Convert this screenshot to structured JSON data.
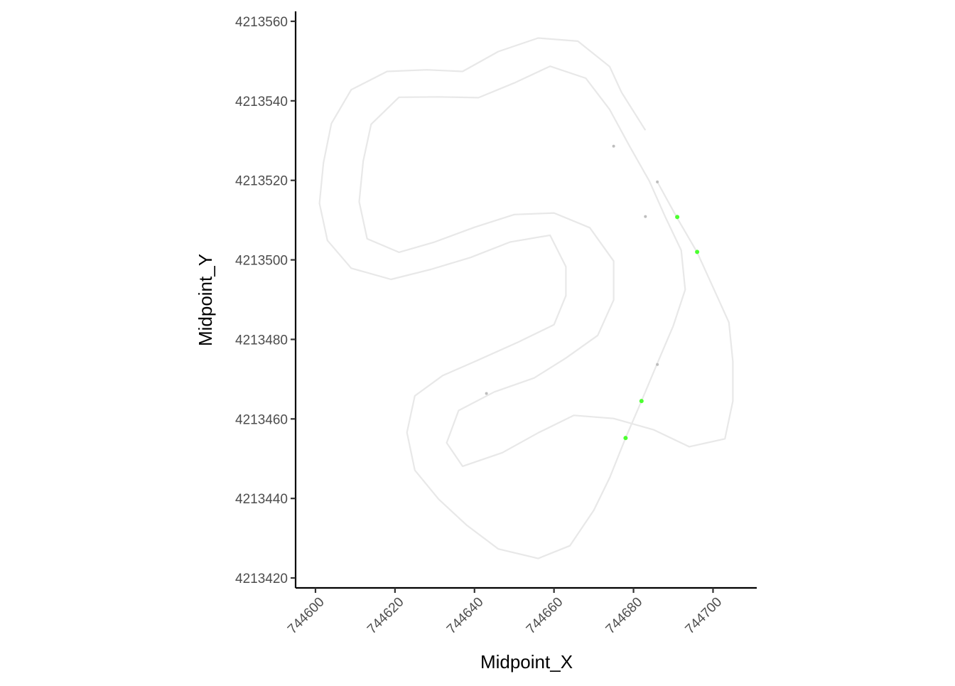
{
  "chart_data": {
    "type": "scatter",
    "title": "",
    "xlabel": "Midpoint_X",
    "ylabel": "Midpoint_Y",
    "xlim": [
      744595,
      744711
    ],
    "ylim": [
      4213417.5,
      4213562.5
    ],
    "x_ticks": [
      744600,
      744620,
      744640,
      744660,
      744680,
      744700
    ],
    "x_tick_labels": [
      "744600",
      "744620",
      "744640",
      "744660",
      "744680",
      "744700"
    ],
    "y_ticks": [
      4213420,
      4213440,
      4213460,
      4213480,
      4213500,
      4213520,
      4213540,
      4213560
    ],
    "y_tick_labels": [
      "4213420",
      "4213440",
      "4213460",
      "4213480",
      "4213500",
      "4213520",
      "4213540",
      "4213560"
    ],
    "grid": false,
    "legend": "none",
    "colors": {
      "bank_line": "#e8e8e8",
      "gray_point": "#bdbdbd",
      "green_point": "#4cff30",
      "axis": "#000000"
    },
    "lines": [
      {
        "role": "outer-bank",
        "points": [
          [
            744683,
            4213532.6
          ],
          [
            744677,
            4213542.1
          ],
          [
            744674,
            4213548.6
          ],
          [
            744666,
            4213555.0
          ],
          [
            744656,
            4213555.8
          ],
          [
            744646,
            4213552.4
          ],
          [
            744637,
            4213547.4
          ],
          [
            744628,
            4213547.8
          ],
          [
            744618,
            4213547.4
          ],
          [
            744609,
            4213542.8
          ],
          [
            744604,
            4213534.3
          ],
          [
            744602,
            4213524.4
          ],
          [
            744601,
            4213514.2
          ],
          [
            744603,
            4213504.9
          ],
          [
            744609,
            4213497.9
          ],
          [
            744619,
            4213495.1
          ],
          [
            744629,
            4213497.6
          ],
          [
            744639,
            4213500.6
          ],
          [
            744649,
            4213504.5
          ],
          [
            744659,
            4213506.2
          ],
          [
            744663,
            4213498.3
          ],
          [
            744663,
            4213491.0
          ],
          [
            744660,
            4213483.7
          ],
          [
            744651,
            4213479.3
          ],
          [
            744640,
            4213474.4
          ],
          [
            744632,
            4213470.9
          ],
          [
            744625,
            4213465.8
          ],
          [
            744623,
            4213456.6
          ],
          [
            744625,
            4213447.1
          ],
          [
            744631,
            4213439.8
          ],
          [
            744638,
            4213433.3
          ],
          [
            744646,
            4213427.3
          ],
          [
            744656,
            4213424.9
          ],
          [
            744664,
            4213428.1
          ],
          [
            744670,
            4213437.0
          ],
          [
            744674,
            4213445.2
          ],
          [
            744678,
            4213455.2
          ],
          [
            744682,
            4213464.5
          ],
          [
            744686,
            4213474.0
          ],
          [
            744690,
            4213483.4
          ],
          [
            744693,
            4213492.5
          ],
          [
            744692,
            4213502.4
          ],
          [
            744688,
            4213510.8
          ],
          [
            744684,
            4213519.8
          ],
          [
            744679,
            4213528.6
          ],
          [
            744674,
            4213537.8
          ],
          [
            744668,
            4213545.7
          ],
          [
            744659,
            4213548.7
          ],
          [
            744650,
            4213544.5
          ],
          [
            744641,
            4213540.8
          ],
          [
            744631,
            4213541.0
          ],
          [
            744621,
            4213540.9
          ],
          [
            744614,
            4213534.1
          ],
          [
            744612,
            4213524.8
          ],
          [
            744611,
            4213514.6
          ],
          [
            744613,
            4213505.3
          ],
          [
            744621,
            4213501.9
          ],
          [
            744630,
            4213504.5
          ],
          [
            744640,
            4213508.2
          ],
          [
            744650,
            4213511.4
          ],
          [
            744660,
            4213511.8
          ],
          [
            744669,
            4213508.1
          ],
          [
            744675,
            4213499.7
          ],
          [
            744675,
            4213489.9
          ],
          [
            744671,
            4213481.0
          ],
          [
            744663,
            4213475.3
          ],
          [
            744655,
            4213470.3
          ],
          [
            744645,
            4213466.8
          ],
          [
            744636,
            4213462.1
          ],
          [
            744633,
            4213454.0
          ],
          [
            744637,
            4213448.1
          ],
          [
            744647,
            4213451.5
          ],
          [
            744656,
            4213456.5
          ],
          [
            744665,
            4213460.9
          ],
          [
            744675,
            4213460.1
          ],
          [
            744685,
            4213457.3
          ],
          [
            744694,
            4213453.0
          ],
          [
            744703,
            4213455.0
          ],
          [
            744705,
            4213464.5
          ],
          [
            744705,
            4213474.4
          ],
          [
            744704,
            4213484.3
          ],
          [
            744700,
            4213493.1
          ],
          [
            744696,
            4213501.9
          ],
          [
            744691,
            4213510.5
          ],
          [
            744686,
            4213519.6
          ]
        ]
      }
    ],
    "series": [
      {
        "color": "#bdbdbd",
        "points": [
          [
            744675,
            4213528.6
          ],
          [
            744686,
            4213519.6
          ],
          [
            744683,
            4213510.9
          ],
          [
            744686,
            4213473.7
          ],
          [
            744643,
            4213466.4
          ]
        ]
      },
      {
        "color": "#4cff30",
        "points": [
          [
            744691,
            4213510.8
          ],
          [
            744696,
            4213502.0
          ],
          [
            744682,
            4213464.5
          ],
          [
            744678,
            4213455.2
          ]
        ]
      }
    ]
  }
}
